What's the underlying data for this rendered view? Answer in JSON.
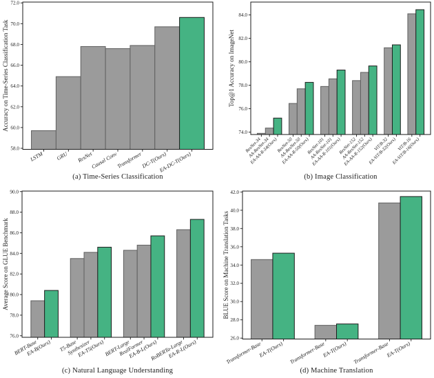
{
  "figure": {
    "background": "#ffffff",
    "colors": {
      "baseline_fill": "#9b9b9b",
      "baseline_edge": "#5f5f5f",
      "ours_fill": "#45b383",
      "ours_edge": "#1c1c1c",
      "axis": "#1a1a1a",
      "text": "#1a1a1a"
    }
  },
  "chart_data": [
    {
      "id": "a",
      "type": "bar",
      "caption": "(a) Time-Series Classification",
      "ylabel": "Accuracy on Time-Series Classification Task",
      "xlabel": "",
      "ylim": [
        57.9,
        72.08
      ],
      "yticks": [
        58,
        60,
        62,
        64,
        66,
        68,
        70,
        72
      ],
      "grid": false,
      "legend_position": "none",
      "groups": [
        {
          "bars": [
            {
              "label": "LSTM",
              "value": 59.7,
              "ours": false
            },
            {
              "label": "GRU",
              "value": 64.9,
              "ours": false
            },
            {
              "label": "ResNet",
              "value": 67.8,
              "ours": false
            },
            {
              "label": "Causal Conv",
              "value": 67.6,
              "ours": false
            },
            {
              "label": "Transformer",
              "value": 67.9,
              "ours": false
            },
            {
              "label": "DC-T(Ours)",
              "value": 69.7,
              "ours": false
            },
            {
              "label": "EA-DC-T(Ours)",
              "value": 70.6,
              "ours": true
            }
          ]
        }
      ]
    },
    {
      "id": "b",
      "type": "bar",
      "caption": "(b) Image Classification",
      "ylabel": "Top@1 Accuracy on ImageNet",
      "xlabel": "",
      "ylim": [
        73.8,
        85.1
      ],
      "yticks": [
        74,
        76,
        78,
        80,
        82,
        84
      ],
      "grid": false,
      "legend_position": "none",
      "groups": [
        {
          "bars": [
            {
              "label": "ResNet-34",
              "value": 73.9,
              "ours": false
            },
            {
              "label": "AA-ResNet-34",
              "value": 74.35,
              "ours": false
            },
            {
              "label": "EA-AA-R-34(Ours)",
              "value": 75.2,
              "ours": true
            }
          ]
        },
        {
          "bars": [
            {
              "label": "ResNet-50",
              "value": 76.45,
              "ours": false
            },
            {
              "label": "AA-ResNet-50",
              "value": 77.7,
              "ours": false
            },
            {
              "label": "EA-AA-R-50(Ours)",
              "value": 78.25,
              "ours": true
            }
          ]
        },
        {
          "bars": [
            {
              "label": "ResNet-101",
              "value": 77.9,
              "ours": false
            },
            {
              "label": "AA-ResNet-101",
              "value": 78.55,
              "ours": false
            },
            {
              "label": "EA-AA-R-101(Ours)",
              "value": 79.3,
              "ours": true
            }
          ]
        },
        {
          "bars": [
            {
              "label": "ResNet-152",
              "value": 78.4,
              "ours": false
            },
            {
              "label": "AA-ResNet-152",
              "value": 79.1,
              "ours": false
            },
            {
              "label": "EA-AA-R-152(Ours)",
              "value": 79.65,
              "ours": true
            }
          ]
        },
        {
          "bars": [
            {
              "label": "ViT/B-32",
              "value": 81.2,
              "ours": false
            },
            {
              "label": "EA-ViT/B-32(Ours)",
              "value": 81.45,
              "ours": true
            }
          ]
        },
        {
          "bars": [
            {
              "label": "ViT/B-16",
              "value": 84.1,
              "ours": false
            },
            {
              "label": "EA-ViT/B-16(Ours)",
              "value": 84.45,
              "ours": true
            }
          ]
        }
      ]
    },
    {
      "id": "c",
      "type": "bar",
      "caption": "(c) Natural Language Understanding",
      "ylabel": "Average Score on GLUE Benchmark",
      "xlabel": "",
      "ylim": [
        75.85,
        90.05
      ],
      "yticks": [
        76,
        78,
        80,
        82,
        84,
        86,
        88,
        90
      ],
      "grid": false,
      "legend_position": "none",
      "groups": [
        {
          "bars": [
            {
              "label": "BERT-Base",
              "value": 79.4,
              "ours": false
            },
            {
              "label": "EA-B(Ours)",
              "value": 80.4,
              "ours": true
            }
          ]
        },
        {
          "bars": [
            {
              "label": "T5-Base",
              "value": 83.5,
              "ours": false
            },
            {
              "label": "Synthesizer",
              "value": 84.1,
              "ours": false
            },
            {
              "label": "EA-T5(Ours)",
              "value": 84.6,
              "ours": true
            }
          ]
        },
        {
          "bars": [
            {
              "label": "BERT-Large",
              "value": 84.3,
              "ours": false
            },
            {
              "label": "RealFormer",
              "value": 84.8,
              "ours": false
            },
            {
              "label": "EA-B-L(Ours)",
              "value": 85.7,
              "ours": true
            }
          ]
        },
        {
          "bars": [
            {
              "label": "RoBERTa-Large",
              "value": 86.3,
              "ours": false
            },
            {
              "label": "EA-R-L(Ours)",
              "value": 87.3,
              "ours": true
            }
          ]
        }
      ]
    },
    {
      "id": "d",
      "type": "bar",
      "caption": "(d) Machine Translation",
      "ylabel": "BLUE Score on Machine Translation Tasks",
      "xlabel": "",
      "ylim": [
        25.9,
        42.1
      ],
      "yticks": [
        26,
        28,
        30,
        32,
        34,
        36,
        38,
        40,
        42
      ],
      "grid": false,
      "legend_position": "none",
      "groups": [
        {
          "bars": [
            {
              "label": "Transformer-Base",
              "value": 34.6,
              "ours": false
            },
            {
              "label": "EA-T(Ours)",
              "value": 35.3,
              "ours": true
            }
          ]
        },
        {
          "bars": [
            {
              "label": "Transformer-Base",
              "value": 27.4,
              "ours": false
            },
            {
              "label": "EA-T(Ours)",
              "value": 27.55,
              "ours": true
            }
          ]
        },
        {
          "bars": [
            {
              "label": "Transformer-Base",
              "value": 40.8,
              "ours": false
            },
            {
              "label": "EA-T(Ours)",
              "value": 41.5,
              "ours": true
            }
          ]
        }
      ]
    }
  ]
}
